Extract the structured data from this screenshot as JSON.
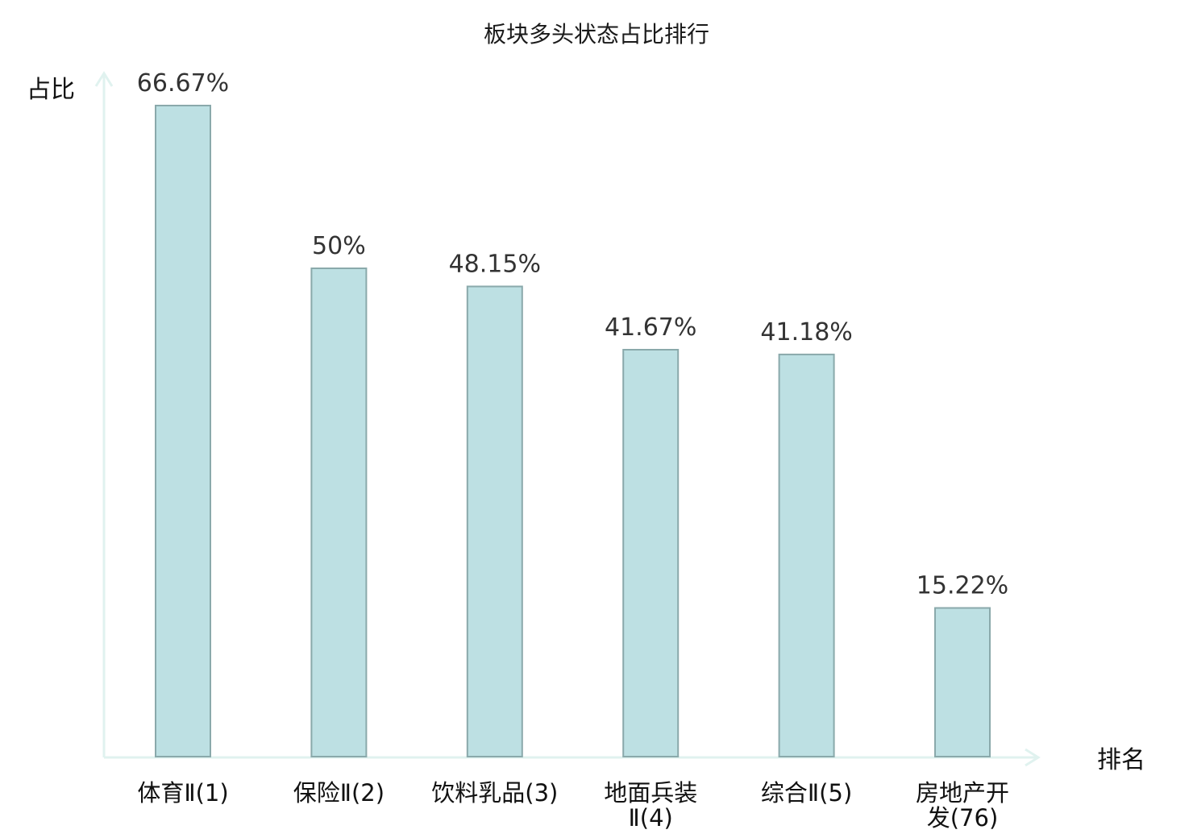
{
  "chart_data": {
    "type": "bar",
    "title": "板块多头状态占比排行",
    "ylabel": "占比",
    "xlabel": "排名",
    "ylim": [
      0,
      70
    ],
    "grid": false,
    "categories": [
      [
        "体育Ⅱ(1)"
      ],
      [
        "保险Ⅱ(2)"
      ],
      [
        "饮料乳品(3)"
      ],
      [
        "地面兵装",
        "Ⅱ(4)"
      ],
      [
        "综合Ⅱ(5)"
      ],
      [
        "房地产开",
        "发(76)"
      ]
    ],
    "values": [
      66.67,
      50,
      48.15,
      41.67,
      41.18,
      15.22
    ],
    "value_labels": [
      "66.67%",
      "50%",
      "48.15%",
      "41.67%",
      "41.18%",
      "15.22%"
    ],
    "highlight_index": 5,
    "colors": {
      "bar_fill": "#bde0e3",
      "bar_stroke": "#8aa9ab",
      "axis": "#e0f2ef",
      "highlight_label": "#e8000b",
      "label": "#111111",
      "value_label": "#333333"
    }
  }
}
